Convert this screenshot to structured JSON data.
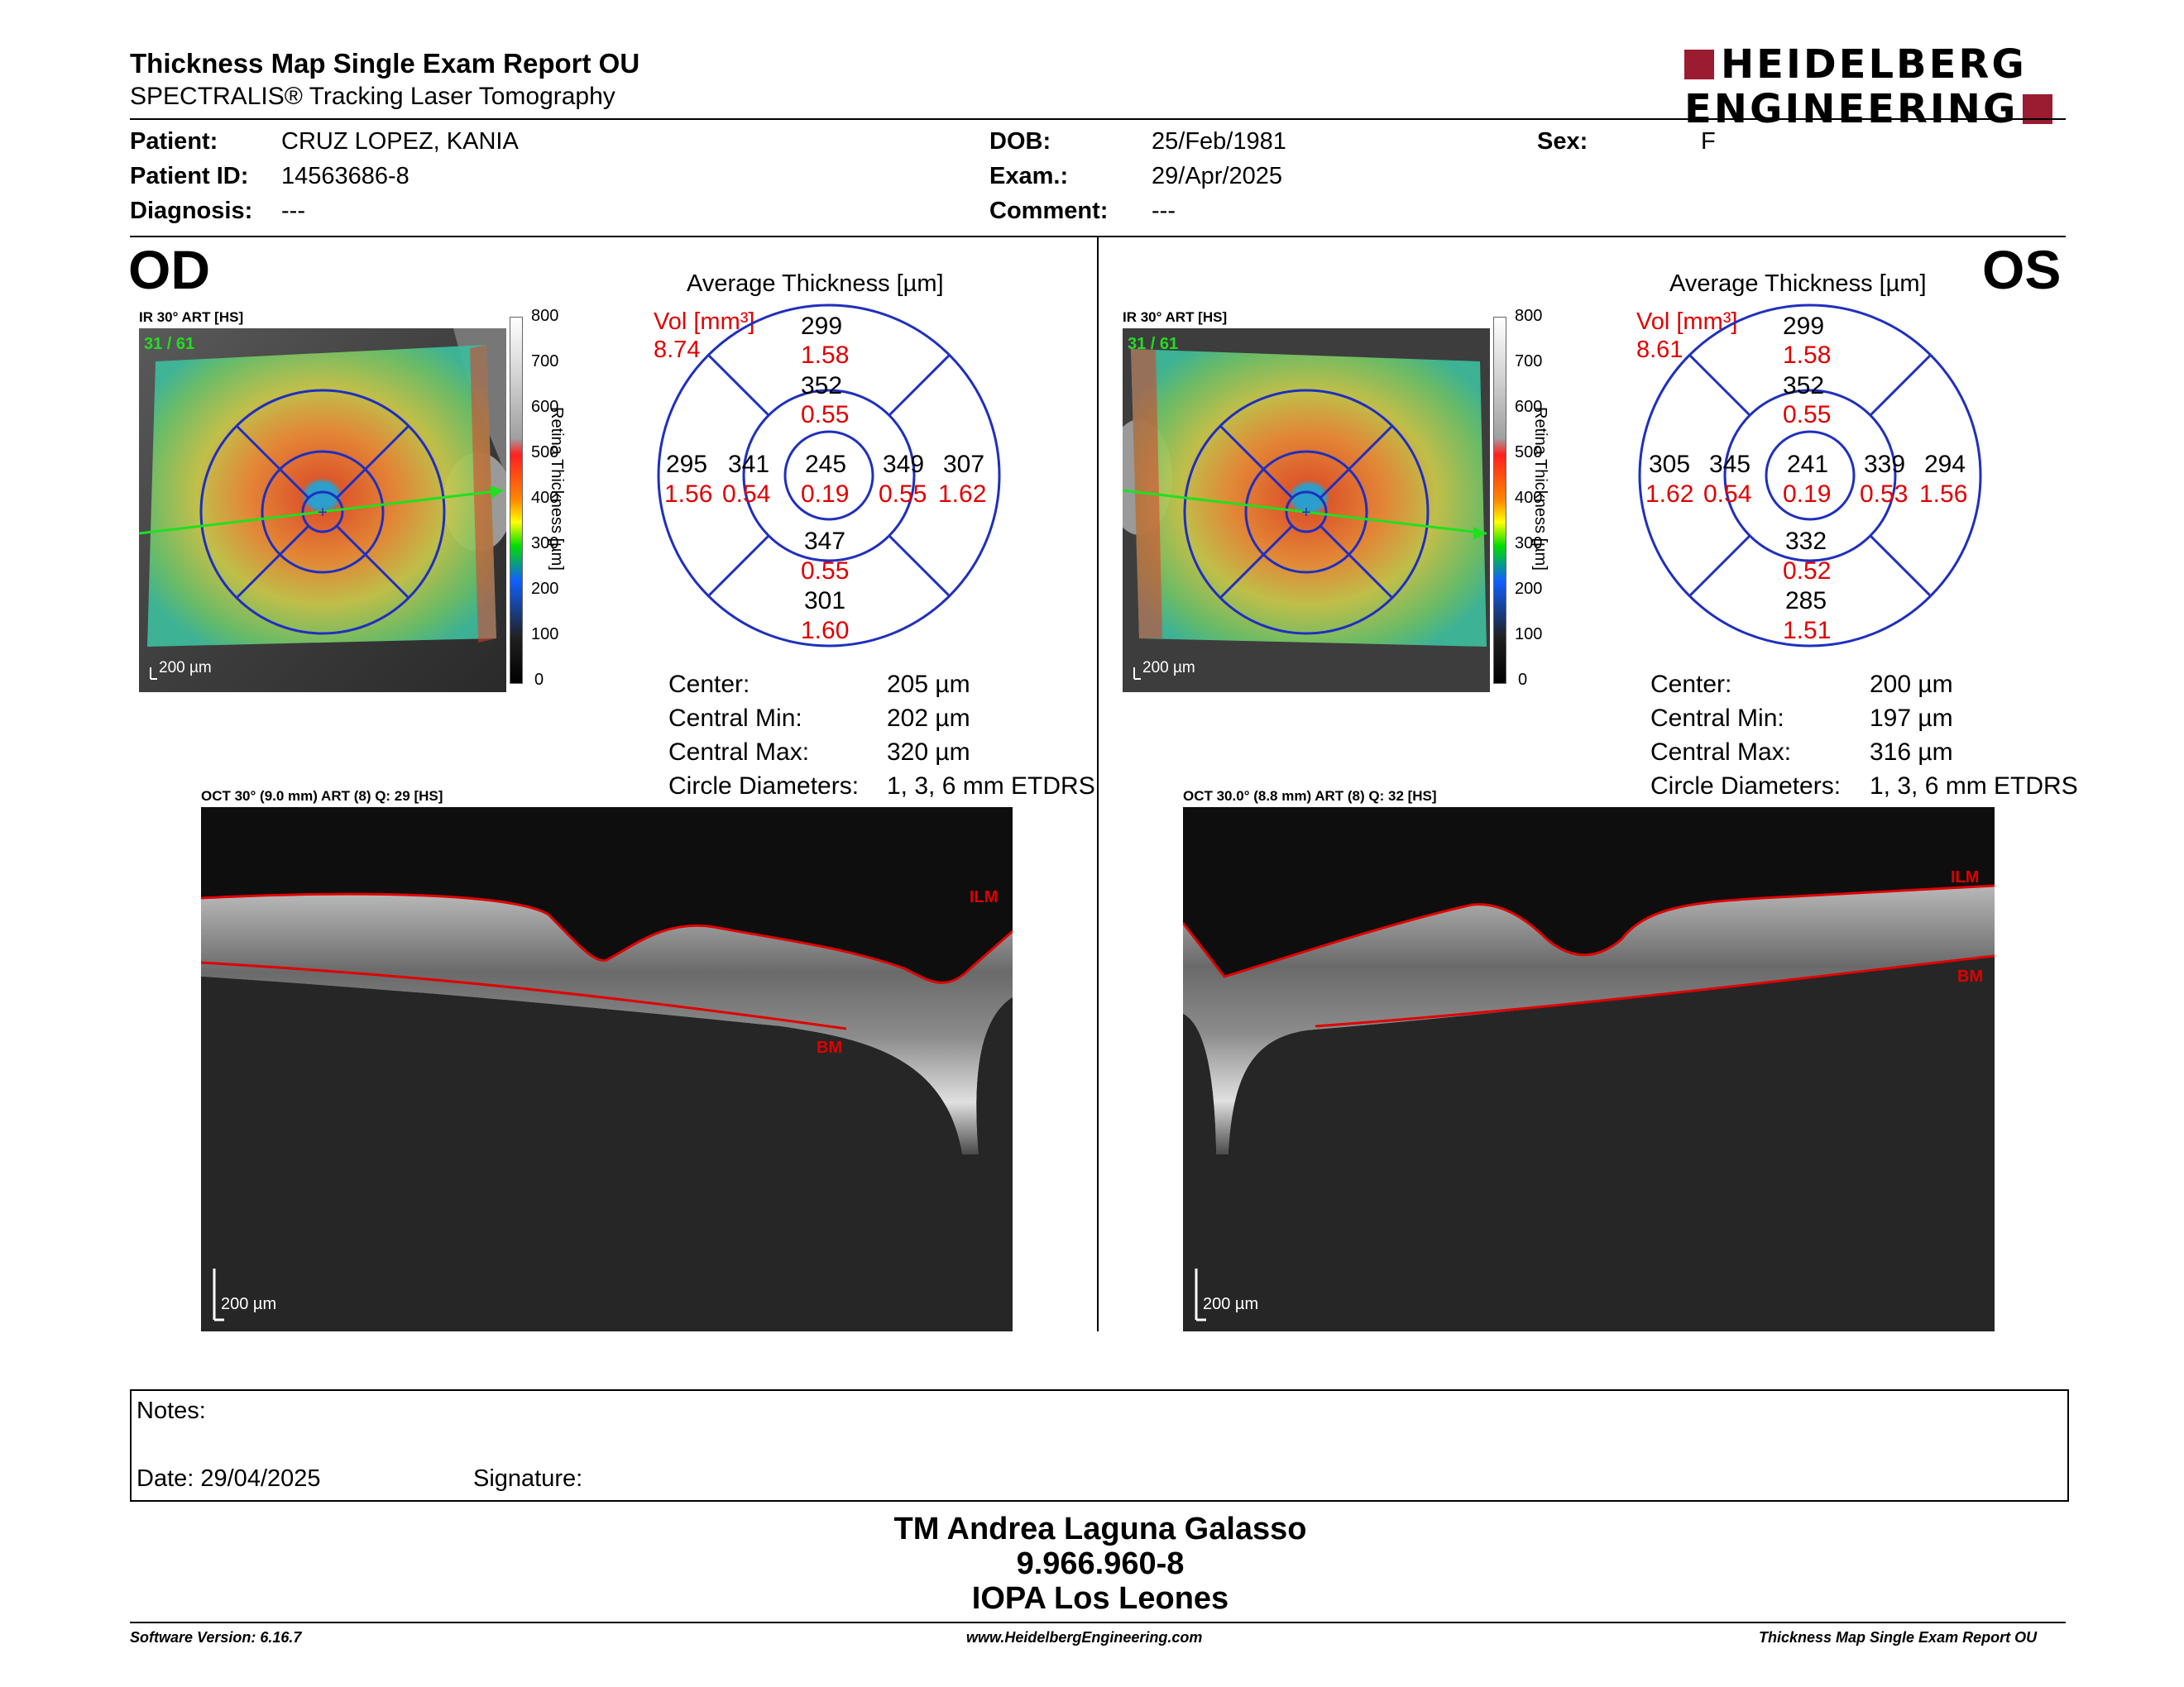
{
  "header": {
    "title": "Thickness Map Single Exam Report OU",
    "subtitle": "SPECTRALIS® Tracking Laser Tomography",
    "logo_line1": "HEIDELBERG",
    "logo_line2": "ENGINEERING"
  },
  "patient": {
    "patient_label": "Patient:",
    "patient": "CRUZ LOPEZ, KANIA",
    "id_label": "Patient ID:",
    "id": "14563686-8",
    "diag_label": "Diagnosis:",
    "diag": "---",
    "dob_label": "DOB:",
    "dob": "25/Feb/1981",
    "exam_label": "Exam.:",
    "exam": "29/Apr/2025",
    "comment_label": "Comment:",
    "comment": "---",
    "sex_label": "Sex:",
    "sex": "F"
  },
  "colors": {
    "ring": "#1f2fbf",
    "volume": "#e00000",
    "brand": "#9b1b30",
    "scan_line": "#20e020",
    "ilm": "#e00000"
  },
  "od": {
    "eye": "OD",
    "ir_label": "IR 30° ART [HS]",
    "ir_counter": "31 / 61",
    "scale_ir": "200 µm",
    "colorbar_ticks": [
      "800",
      "700",
      "600",
      "500",
      "400",
      "300",
      "200",
      "100",
      "0"
    ],
    "colorbar_title": "Retina  Thickness [µm]",
    "avg_title": "Average Thickness [µm]",
    "vol_label": "Vol [mm³]",
    "vol_total": "8.74",
    "sectors": {
      "outer_sup": "299",
      "outer_sup_v": "1.58",
      "inner_sup": "352",
      "inner_sup_v": "0.55",
      "outer_left": "295",
      "outer_left_v": "1.56",
      "inner_left": "341",
      "inner_left_v": "0.54",
      "center": "245",
      "center_v": "0.19",
      "inner_right": "349",
      "inner_right_v": "0.55",
      "outer_right": "307",
      "outer_right_v": "1.62",
      "inner_inf": "347",
      "inner_inf_v": "0.55",
      "outer_inf": "301",
      "outer_inf_v": "1.60"
    },
    "stats": {
      "center_label": "Center:",
      "center": "205 µm",
      "min_label": "Central Min:",
      "min": "202 µm",
      "max_label": "Central Max:",
      "max": "320 µm",
      "diam_label": "Circle Diameters:",
      "diam": "1, 3, 6 mm ETDRS"
    },
    "oct_label": "OCT 30° (9.0 mm) ART (8) Q: 29 [HS]",
    "ilm": "ILM",
    "bm": "BM",
    "scale_oct": "200 µm"
  },
  "os": {
    "eye": "OS",
    "ir_label": "IR 30° ART [HS]",
    "ir_counter": "31 / 61",
    "scale_ir": "200 µm",
    "colorbar_ticks": [
      "800",
      "700",
      "600",
      "500",
      "400",
      "300",
      "200",
      "100",
      "0"
    ],
    "colorbar_title": "Retina  Thickness [µm]",
    "avg_title": "Average Thickness [µm]",
    "vol_label": "Vol [mm³]",
    "vol_total": "8.61",
    "sectors": {
      "outer_sup": "299",
      "outer_sup_v": "1.58",
      "inner_sup": "352",
      "inner_sup_v": "0.55",
      "outer_left": "305",
      "outer_left_v": "1.62",
      "inner_left": "345",
      "inner_left_v": "0.54",
      "center": "241",
      "center_v": "0.19",
      "inner_right": "339",
      "inner_right_v": "0.53",
      "outer_right": "294",
      "outer_right_v": "1.56",
      "inner_inf": "332",
      "inner_inf_v": "0.52",
      "outer_inf": "285",
      "outer_inf_v": "1.51"
    },
    "stats": {
      "center_label": "Center:",
      "center": "200 µm",
      "min_label": "Central Min:",
      "min": "197 µm",
      "max_label": "Central Max:",
      "max": "316 µm",
      "diam_label": "Circle Diameters:",
      "diam": "1, 3, 6 mm ETDRS"
    },
    "oct_label": "OCT 30.0° (8.8 mm) ART (8) Q: 32 [HS]",
    "ilm": "ILM",
    "bm": "BM",
    "scale_oct": "200 µm"
  },
  "notes": {
    "notes_label": "Notes:",
    "date_label": "Date: 29/04/2025",
    "signature_label": "Signature:"
  },
  "signature": {
    "line1": "TM Andrea Laguna Galasso",
    "line2": "9.966.960-8",
    "line3": "IOPA Los Leones"
  },
  "footer": {
    "left": "Software Version: 6.16.7",
    "center": "www.HeidelbergEngineering.com",
    "right": "Thickness Map Single Exam Report OU"
  }
}
